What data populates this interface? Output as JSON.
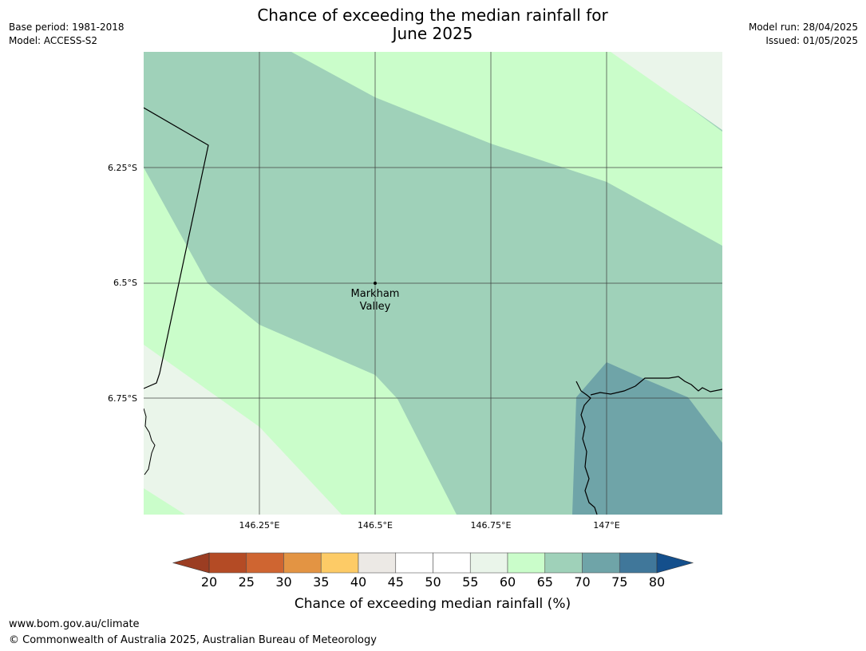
{
  "header": {
    "title_line1": "Chance of exceeding the median rainfall for",
    "title_line2": "June 2025",
    "base_period": "Base period: 1981-2018",
    "model": "Model: ACCESS-S2",
    "model_run": "Model run: 28/04/2025",
    "issued": "Issued: 01/05/2025"
  },
  "map": {
    "lat_labels": [
      "6.25°S",
      "6.5°S",
      "6.75°S"
    ],
    "lon_labels": [
      "146.25°E",
      "146.5°E",
      "146.75°E",
      "147°E"
    ],
    "place_label_line1": "Markham",
    "place_label_line2": "Valley"
  },
  "legend": {
    "tick_labels": [
      "20",
      "25",
      "30",
      "35",
      "40",
      "45",
      "50",
      "55",
      "60",
      "65",
      "70",
      "75",
      "80"
    ],
    "title": "Chance of exceeding median rainfall (%)",
    "colors": {
      "below_20": "#9b3d22",
      "20_25": "#b44b25",
      "25_30": "#cf6531",
      "30_35": "#e39443",
      "35_40": "#fdcb66",
      "40_45": "#ece9e5",
      "45_50": "#ffffff",
      "50_55": "#ffffff",
      "55_60": "#eaf5ea",
      "60_65": "#cafdca",
      "65_70": "#9fd1b9",
      "70_75": "#6fa4a8",
      "75_80": "#40779a",
      "above_80": "#144f8c"
    }
  },
  "footer": {
    "url": "www.bom.gov.au/climate",
    "copyright": "© Commonwealth of Australia 2025, Australian Bureau of Meteorology"
  }
}
